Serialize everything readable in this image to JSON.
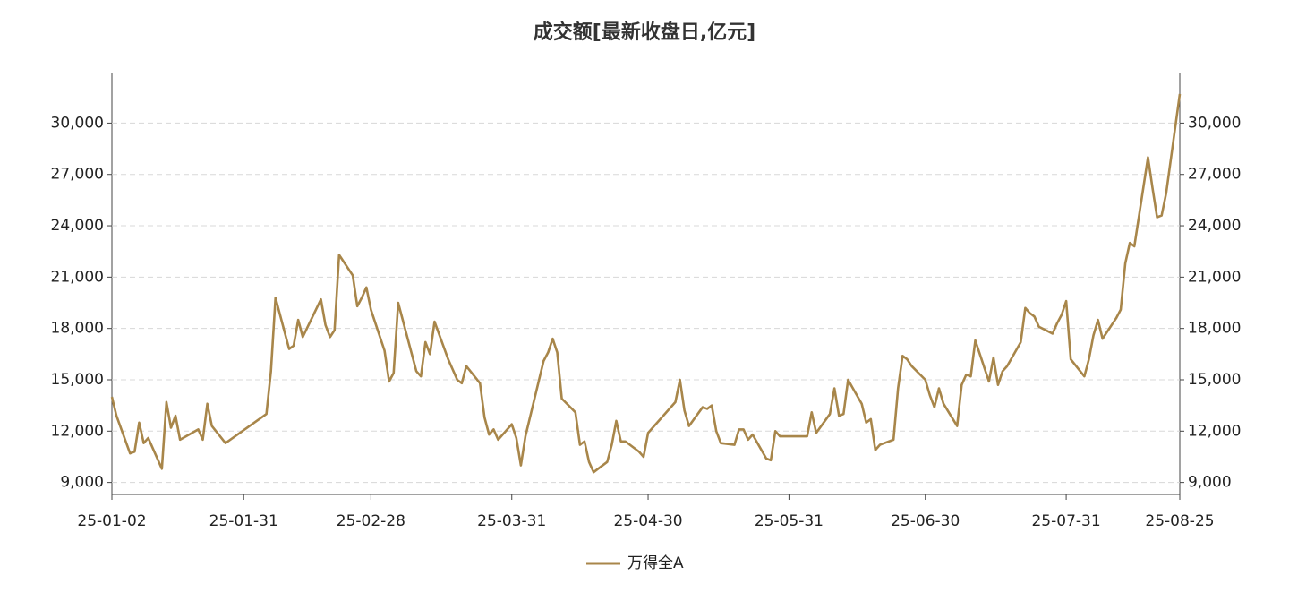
{
  "chart_data": {
    "type": "line",
    "title": "成交额[最新收盘日,亿元]",
    "x": [
      "25-01-02",
      "25-01-03",
      "25-01-06",
      "25-01-07",
      "25-01-08",
      "25-01-09",
      "25-01-10",
      "25-01-13",
      "25-01-14",
      "25-01-15",
      "25-01-16",
      "25-01-17",
      "25-01-21",
      "25-01-22",
      "25-01-23",
      "25-01-24",
      "25-01-27",
      "25-02-05",
      "25-02-06",
      "25-02-07",
      "25-02-10",
      "25-02-11",
      "25-02-12",
      "25-02-13",
      "25-02-17",
      "25-02-18",
      "25-02-19",
      "25-02-20",
      "25-02-21",
      "25-02-24",
      "25-02-25",
      "25-02-26",
      "25-02-27",
      "25-02-28",
      "25-03-03",
      "25-03-04",
      "25-03-05",
      "25-03-06",
      "25-03-07",
      "25-03-10",
      "25-03-11",
      "25-03-12",
      "25-03-13",
      "25-03-14",
      "25-03-17",
      "25-03-18",
      "25-03-19",
      "25-03-20",
      "25-03-21",
      "25-03-24",
      "25-03-25",
      "25-03-26",
      "25-03-27",
      "25-03-28",
      "25-03-31",
      "25-04-01",
      "25-04-02",
      "25-04-03",
      "25-04-07",
      "25-04-08",
      "25-04-09",
      "25-04-10",
      "25-04-11",
      "25-04-14",
      "25-04-15",
      "25-04-16",
      "25-04-17",
      "25-04-18",
      "25-04-21",
      "25-04-22",
      "25-04-23",
      "25-04-24",
      "25-04-25",
      "25-04-28",
      "25-04-29",
      "25-04-30",
      "25-05-06",
      "25-05-07",
      "25-05-08",
      "25-05-09",
      "25-05-12",
      "25-05-13",
      "25-05-14",
      "25-05-15",
      "25-05-16",
      "25-05-19",
      "25-05-20",
      "25-05-21",
      "25-05-22",
      "25-05-23",
      "25-05-26",
      "25-05-27",
      "25-05-28",
      "25-05-29",
      "25-05-30",
      "25-06-03",
      "25-06-04",
      "25-06-05",
      "25-06-06",
      "25-06-09",
      "25-06-10",
      "25-06-11",
      "25-06-12",
      "25-06-13",
      "25-06-16",
      "25-06-17",
      "25-06-18",
      "25-06-19",
      "25-06-20",
      "25-06-23",
      "25-06-24",
      "25-06-25",
      "25-06-26",
      "25-06-27",
      "25-06-30",
      "25-07-01",
      "25-07-02",
      "25-07-03",
      "25-07-04",
      "25-07-07",
      "25-07-08",
      "25-07-09",
      "25-07-10",
      "25-07-11",
      "25-07-14",
      "25-07-15",
      "25-07-16",
      "25-07-17",
      "25-07-18",
      "25-07-21",
      "25-07-22",
      "25-07-23",
      "25-07-24",
      "25-07-25",
      "25-07-28",
      "25-07-29",
      "25-07-30",
      "25-07-31",
      "25-08-01",
      "25-08-04",
      "25-08-05",
      "25-08-06",
      "25-08-07",
      "25-08-08",
      "25-08-11",
      "25-08-12",
      "25-08-13",
      "25-08-14",
      "25-08-15",
      "25-08-18",
      "25-08-19",
      "25-08-20",
      "25-08-21",
      "25-08-22",
      "25-08-25"
    ],
    "series": [
      {
        "name": "万得全A",
        "color": "#a8864a",
        "values": [
          14000,
          12900,
          10700,
          10800,
          12500,
          11300,
          11600,
          9800,
          13700,
          12200,
          12900,
          11500,
          12100,
          11500,
          13600,
          12300,
          11300,
          13000,
          15500,
          19800,
          16800,
          17000,
          18500,
          17500,
          19700,
          18200,
          17500,
          17900,
          22300,
          21100,
          19300,
          19800,
          20400,
          19100,
          16700,
          14900,
          15400,
          19500,
          18500,
          15500,
          15200,
          17200,
          16500,
          18400,
          16200,
          15600,
          15000,
          14800,
          15800,
          14800,
          12800,
          11800,
          12100,
          11500,
          12400,
          11600,
          10000,
          11700,
          16100,
          16600,
          17400,
          16600,
          13900,
          13100,
          11200,
          11400,
          10200,
          9600,
          10200,
          11200,
          12600,
          11400,
          11400,
          10800,
          10500,
          11900,
          13700,
          15000,
          13200,
          12300,
          13400,
          13300,
          13500,
          12000,
          11300,
          11200,
          12100,
          12100,
          11500,
          11800,
          10400,
          10300,
          12000,
          11700,
          11700,
          11700,
          11700,
          13100,
          11900,
          13000,
          14500,
          12900,
          13000,
          15000,
          13600,
          12500,
          12700,
          10900,
          11200,
          11500,
          14500,
          16400,
          16200,
          15800,
          15000,
          14100,
          13400,
          14500,
          13600,
          12300,
          14700,
          15300,
          15200,
          17300,
          14900,
          16300,
          14700,
          15500,
          15800,
          17200,
          19200,
          18900,
          18700,
          18100,
          17700,
          18300,
          18800,
          19600,
          16200,
          15200,
          16200,
          17600,
          18500,
          17400,
          18600,
          19100,
          21800,
          23000,
          22800,
          28000,
          26200,
          24500,
          24600,
          25900,
          31700
        ]
      }
    ],
    "xticks": [
      "25-01-02",
      "25-01-31",
      "25-02-28",
      "25-03-31",
      "25-04-30",
      "25-05-31",
      "25-06-30",
      "25-07-31",
      "25-08-25"
    ],
    "ylim": [
      8300,
      32900
    ],
    "yticks": [
      {
        "value": 9000,
        "label": "9,000"
      },
      {
        "value": 12000,
        "label": "12,000"
      },
      {
        "value": 15000,
        "label": "15,000"
      },
      {
        "value": 18000,
        "label": "18,000"
      },
      {
        "value": 21000,
        "label": "21,000"
      },
      {
        "value": 24000,
        "label": "24,000"
      },
      {
        "value": 27000,
        "label": "27,000"
      },
      {
        "value": 30000,
        "label": "30,000"
      }
    ],
    "grid": true
  }
}
